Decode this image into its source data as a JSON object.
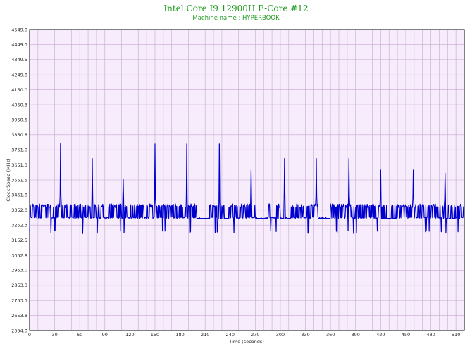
{
  "chart_data": {
    "type": "line",
    "title": "Intel Core I9 12900H E-Core #12",
    "subtitle": "Machine name : HYPERBOOK",
    "xlabel": "Time (seconds)",
    "ylabel": "Clock Speed (MHz)",
    "xlim": [
      0,
      520
    ],
    "ylim": [
      2554.0,
      4549.0
    ],
    "x_ticks": [
      0,
      30,
      60,
      90,
      120,
      150,
      180,
      210,
      240,
      270,
      300,
      330,
      360,
      390,
      420,
      450,
      480,
      510
    ],
    "y_ticks": [
      "2554.0",
      "2653.8",
      "2753.5",
      "2853.3",
      "2953.0",
      "3052.8",
      "3152.5",
      "3252.3",
      "3352.0",
      "3451.8",
      "3551.5",
      "3651.3",
      "3751.0",
      "3850.8",
      "3950.5",
      "4050.3",
      "4150.0",
      "4249.8",
      "4349.5",
      "4449.3",
      "4549.0"
    ],
    "grid": true,
    "colors": {
      "plot_background": "#f7ecfb",
      "grid": "#c7a8cf",
      "line": "#0000cc",
      "title": "#1f9a1f"
    },
    "series": [
      {
        "baseline": 3297,
        "high": 3393,
        "low": 3196,
        "spikes": [
          {
            "x": 37,
            "y": 3792
          },
          {
            "x": 75,
            "y": 3693
          },
          {
            "x": 112,
            "y": 3557
          },
          {
            "x": 150,
            "y": 3790
          },
          {
            "x": 188,
            "y": 3790
          },
          {
            "x": 227,
            "y": 3790
          },
          {
            "x": 265,
            "y": 3617
          },
          {
            "x": 305,
            "y": 3693
          },
          {
            "x": 343,
            "y": 3693
          },
          {
            "x": 382,
            "y": 3693
          },
          {
            "x": 420,
            "y": 3617
          },
          {
            "x": 459,
            "y": 3617
          },
          {
            "x": 497,
            "y": 3597
          }
        ]
      }
    ]
  }
}
